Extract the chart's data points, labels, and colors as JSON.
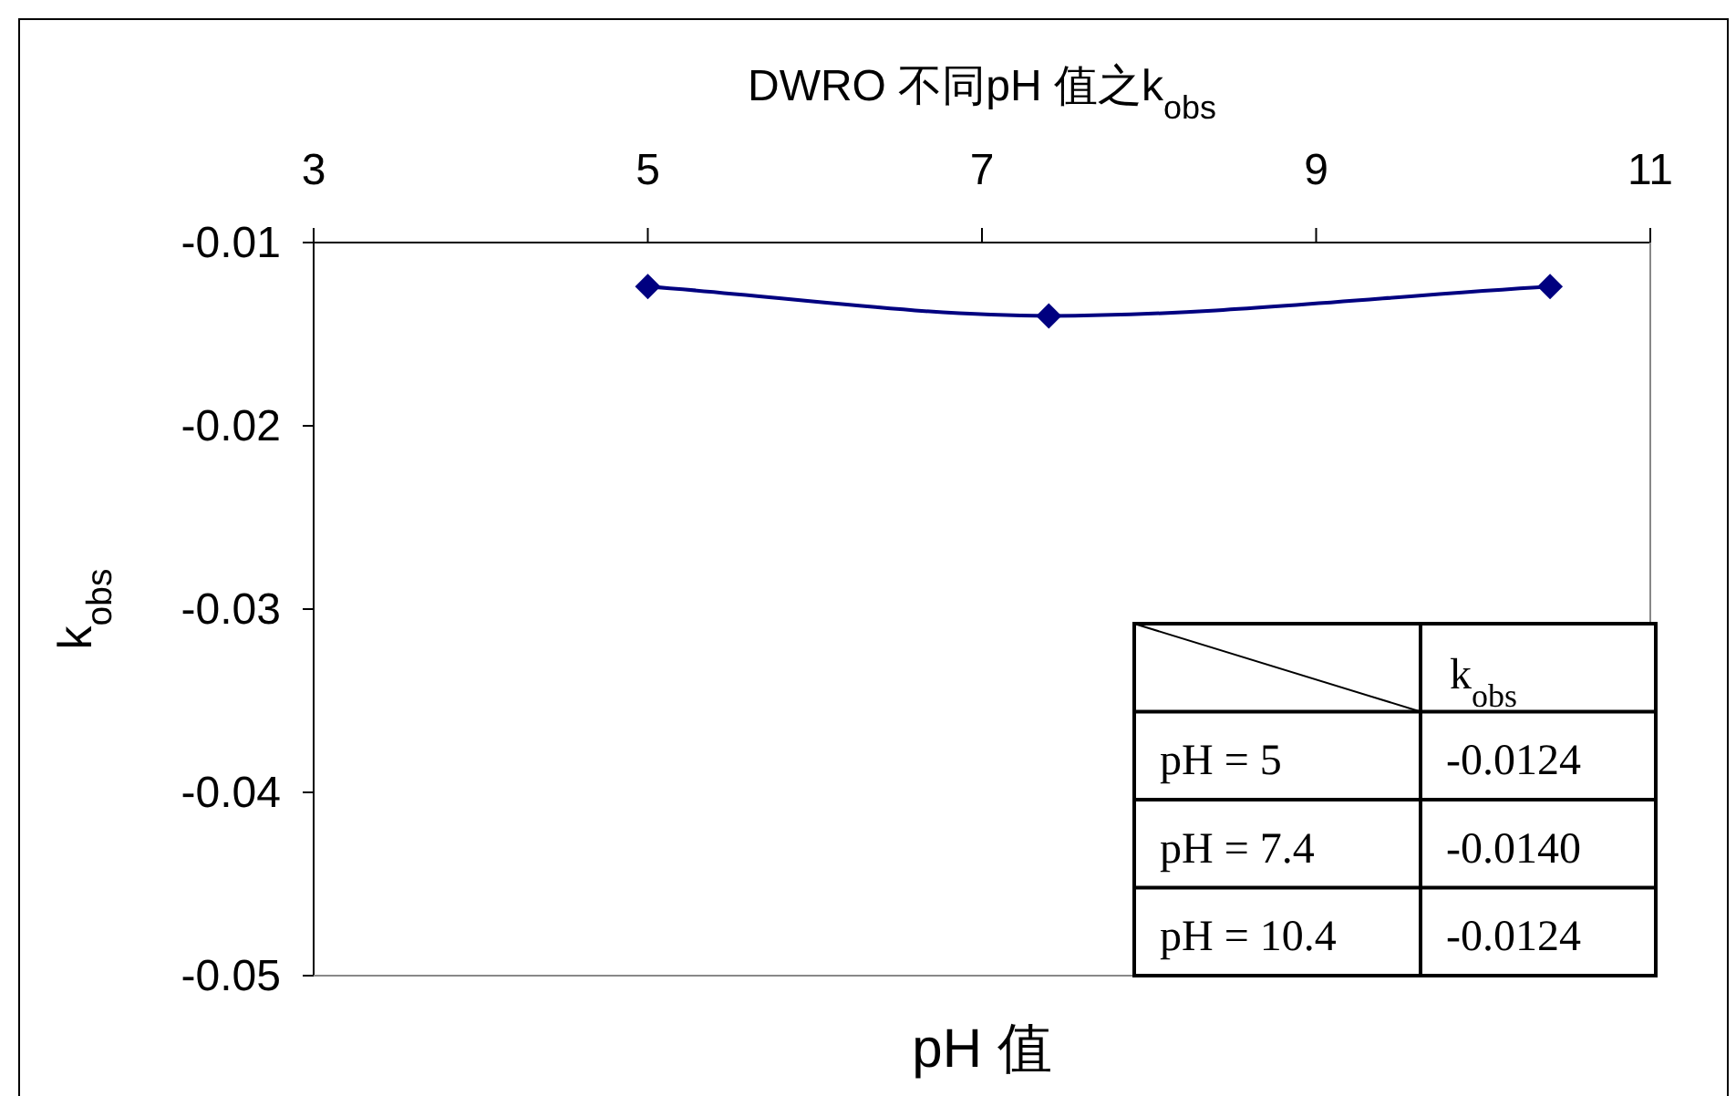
{
  "chart_data": {
    "type": "line",
    "title": "DWRO 不同pH 值之k$_{obs}$",
    "xlabel": "pH 值",
    "ylabel": "k$_{obs}$",
    "x": [
      5,
      7.4,
      10.4
    ],
    "series": [
      {
        "color": "#000080",
        "values": [
          -0.0124,
          -0.014,
          -0.0124
        ]
      }
    ],
    "xlim": [
      3,
      11
    ],
    "xticks": [
      3,
      5,
      7,
      9,
      11
    ],
    "ylim": [
      -0.05,
      -0.01
    ],
    "yticks": [
      -0.05,
      -0.04,
      -0.03,
      -0.02,
      -0.01
    ],
    "marker": "diamond",
    "annotations": [
      "k$_{obs}$",
      "pH = 5",
      "-0.0124",
      "pH = 7.4",
      "-0.0140",
      "pH = 10.4",
      "-0.0124"
    ]
  }
}
